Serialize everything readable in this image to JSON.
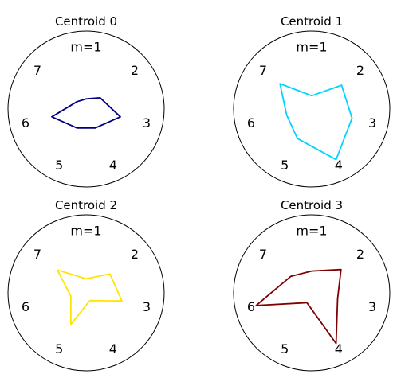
{
  "chart_data": [
    {
      "type": "radar",
      "title": "Centroid 0",
      "axes": [
        "m=1",
        "2",
        "3",
        "4",
        "5",
        "6",
        "7"
      ],
      "color": "#00007f",
      "values": [
        0.13,
        0.23,
        0.45,
        0.27,
        0.27,
        0.45,
        0.15
      ]
    },
    {
      "type": "radar",
      "title": "Centroid 1",
      "axes": [
        "m=1",
        "2",
        "3",
        "4",
        "5",
        "6",
        "7"
      ],
      "color": "#00d4ff",
      "values": [
        0.17,
        0.49,
        0.53,
        0.72,
        0.42,
        0.33,
        0.52
      ]
    },
    {
      "type": "radar",
      "title": "Centroid 2",
      "axes": [
        "m=1",
        "2",
        "3",
        "4",
        "5",
        "6",
        "7"
      ],
      "color": "#ffe500",
      "values": [
        0.18,
        0.39,
        0.47,
        0.11,
        0.45,
        0.2,
        0.47
      ]
    },
    {
      "type": "radar",
      "title": "Centroid 3",
      "axes": [
        "m=1",
        "2",
        "3",
        "4",
        "5",
        "6",
        "7"
      ],
      "color": "#7f0000",
      "values": [
        0.28,
        0.48,
        0.34,
        0.72,
        0.14,
        0.73,
        0.34
      ]
    }
  ]
}
